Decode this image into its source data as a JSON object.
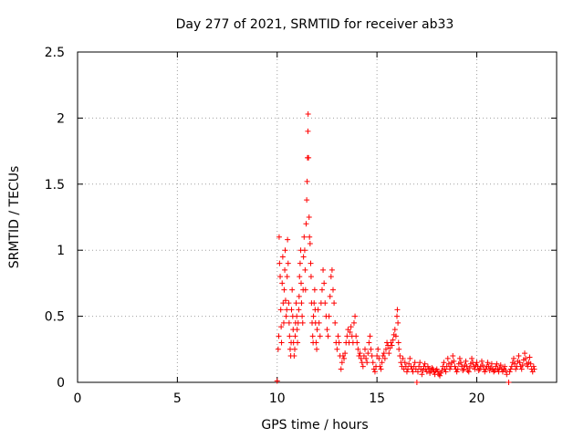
{
  "chart_data": {
    "type": "scatter",
    "title": "Day 277 of 2021, SRMTID for receiver ab33",
    "xlabel": "GPS time / hours",
    "ylabel": "SRMTID / TECUs",
    "xlim": [
      0,
      24
    ],
    "ylim": [
      0,
      2.5
    ],
    "xticks": [
      0,
      5,
      10,
      15,
      20
    ],
    "xtick_labels": [
      "0",
      "5",
      "10",
      "15",
      "20"
    ],
    "yticks": [
      0,
      0.5,
      1,
      1.5,
      2,
      2.5
    ],
    "ytick_labels": [
      "0",
      "0.5",
      "1",
      "1.5",
      "2",
      "2.5"
    ],
    "grid": true,
    "marker": "+",
    "color": "#ff0000",
    "series": [
      {
        "name": "SRMTID",
        "points": [
          [
            10.0,
            0.01
          ],
          [
            10.05,
            0.25
          ],
          [
            10.08,
            0.35
          ],
          [
            10.1,
            1.1
          ],
          [
            10.12,
            0.9
          ],
          [
            10.15,
            0.8
          ],
          [
            10.18,
            0.55
          ],
          [
            10.2,
            0.42
          ],
          [
            10.22,
            0.3
          ],
          [
            10.25,
            0.75
          ],
          [
            10.28,
            0.95
          ],
          [
            10.3,
            0.6
          ],
          [
            10.33,
            0.45
          ],
          [
            10.35,
            0.7
          ],
          [
            10.38,
            0.85
          ],
          [
            10.4,
            1.0
          ],
          [
            10.42,
            0.62
          ],
          [
            10.45,
            0.5
          ],
          [
            10.48,
            0.55
          ],
          [
            10.5,
            0.8
          ],
          [
            10.52,
            1.08
          ],
          [
            10.55,
            0.9
          ],
          [
            10.58,
            0.6
          ],
          [
            10.6,
            0.45
          ],
          [
            10.62,
            0.35
          ],
          [
            10.65,
            0.25
          ],
          [
            10.68,
            0.2
          ],
          [
            10.7,
            0.3
          ],
          [
            10.72,
            0.55
          ],
          [
            10.75,
            0.7
          ],
          [
            10.78,
            0.5
          ],
          [
            10.8,
            0.4
          ],
          [
            10.82,
            0.3
          ],
          [
            10.85,
            0.2
          ],
          [
            10.88,
            0.25
          ],
          [
            10.9,
            0.35
          ],
          [
            10.92,
            0.45
          ],
          [
            10.95,
            0.6
          ],
          [
            10.98,
            0.5
          ],
          [
            11.0,
            0.4
          ],
          [
            11.02,
            0.3
          ],
          [
            11.05,
            0.45
          ],
          [
            11.08,
            0.55
          ],
          [
            11.1,
            0.65
          ],
          [
            11.12,
            0.8
          ],
          [
            11.15,
            0.9
          ],
          [
            11.18,
            1.0
          ],
          [
            11.2,
            0.75
          ],
          [
            11.22,
            0.6
          ],
          [
            11.25,
            0.5
          ],
          [
            11.28,
            0.45
          ],
          [
            11.3,
            0.7
          ],
          [
            11.32,
            0.95
          ],
          [
            11.35,
            1.1
          ],
          [
            11.38,
            1.0
          ],
          [
            11.4,
            0.85
          ],
          [
            11.42,
            0.7
          ],
          [
            11.45,
            1.2
          ],
          [
            11.48,
            1.38
          ],
          [
            11.5,
            1.52
          ],
          [
            11.52,
            1.7
          ],
          [
            11.54,
            1.9
          ],
          [
            11.55,
            2.03
          ],
          [
            11.57,
            1.7
          ],
          [
            11.6,
            1.25
          ],
          [
            11.62,
            1.1
          ],
          [
            11.65,
            1.05
          ],
          [
            11.68,
            0.9
          ],
          [
            11.7,
            0.8
          ],
          [
            11.72,
            0.6
          ],
          [
            11.75,
            0.45
          ],
          [
            11.78,
            0.35
          ],
          [
            11.8,
            0.3
          ],
          [
            11.82,
            0.5
          ],
          [
            11.85,
            0.6
          ],
          [
            11.88,
            0.7
          ],
          [
            11.9,
            0.55
          ],
          [
            11.92,
            0.45
          ],
          [
            11.95,
            0.3
          ],
          [
            11.98,
            0.25
          ],
          [
            12.0,
            0.4
          ],
          [
            12.05,
            0.55
          ],
          [
            12.1,
            0.45
          ],
          [
            12.15,
            0.35
          ],
          [
            12.2,
            0.6
          ],
          [
            12.25,
            0.7
          ],
          [
            12.3,
            0.85
          ],
          [
            12.35,
            0.75
          ],
          [
            12.4,
            0.6
          ],
          [
            12.45,
            0.5
          ],
          [
            12.5,
            0.4
          ],
          [
            12.55,
            0.35
          ],
          [
            12.6,
            0.5
          ],
          [
            12.65,
            0.65
          ],
          [
            12.7,
            0.8
          ],
          [
            12.75,
            0.85
          ],
          [
            12.8,
            0.7
          ],
          [
            12.85,
            0.6
          ],
          [
            12.9,
            0.45
          ],
          [
            12.95,
            0.3
          ],
          [
            13.0,
            0.25
          ],
          [
            13.05,
            0.35
          ],
          [
            13.1,
            0.3
          ],
          [
            13.15,
            0.2
          ],
          [
            13.2,
            0.1
          ],
          [
            13.25,
            0.15
          ],
          [
            13.3,
            0.2
          ],
          [
            13.35,
            0.18
          ],
          [
            13.4,
            0.22
          ],
          [
            13.45,
            0.3
          ],
          [
            13.5,
            0.35
          ],
          [
            13.55,
            0.4
          ],
          [
            13.6,
            0.3
          ],
          [
            13.65,
            0.38
          ],
          [
            13.7,
            0.42
          ],
          [
            13.75,
            0.35
          ],
          [
            13.8,
            0.3
          ],
          [
            13.85,
            0.45
          ],
          [
            13.9,
            0.5
          ],
          [
            13.95,
            0.35
          ],
          [
            14.0,
            0.3
          ],
          [
            14.05,
            0.25
          ],
          [
            14.1,
            0.2
          ],
          [
            14.15,
            0.22
          ],
          [
            14.2,
            0.18
          ],
          [
            14.25,
            0.15
          ],
          [
            14.3,
            0.12
          ],
          [
            14.35,
            0.2
          ],
          [
            14.4,
            0.25
          ],
          [
            14.45,
            0.18
          ],
          [
            14.5,
            0.15
          ],
          [
            14.55,
            0.22
          ],
          [
            14.6,
            0.3
          ],
          [
            14.65,
            0.35
          ],
          [
            14.7,
            0.25
          ],
          [
            14.75,
            0.2
          ],
          [
            14.8,
            0.15
          ],
          [
            14.85,
            0.1
          ],
          [
            14.9,
            0.08
          ],
          [
            14.95,
            0.12
          ],
          [
            15.0,
            0.2
          ],
          [
            15.05,
            0.25
          ],
          [
            15.1,
            0.18
          ],
          [
            15.15,
            0.12
          ],
          [
            15.2,
            0.1
          ],
          [
            15.25,
            0.15
          ],
          [
            15.3,
            0.2
          ],
          [
            15.35,
            0.22
          ],
          [
            15.4,
            0.18
          ],
          [
            15.45,
            0.25
          ],
          [
            15.5,
            0.3
          ],
          [
            15.55,
            0.28
          ],
          [
            15.6,
            0.22
          ],
          [
            15.65,
            0.26
          ],
          [
            15.7,
            0.3
          ],
          [
            15.75,
            0.28
          ],
          [
            15.8,
            0.32
          ],
          [
            15.85,
            0.36
          ],
          [
            15.9,
            0.4
          ],
          [
            15.95,
            0.35
          ],
          [
            16.0,
            0.5
          ],
          [
            16.02,
            0.55
          ],
          [
            16.05,
            0.45
          ],
          [
            16.08,
            0.3
          ],
          [
            16.1,
            0.25
          ],
          [
            16.15,
            0.2
          ],
          [
            16.2,
            0.15
          ],
          [
            16.25,
            0.12
          ],
          [
            16.3,
            0.18
          ],
          [
            16.35,
            0.1
          ],
          [
            16.4,
            0.15
          ],
          [
            16.45,
            0.12
          ],
          [
            16.5,
            0.08
          ],
          [
            16.55,
            0.1
          ],
          [
            16.6,
            0.14
          ],
          [
            16.65,
            0.18
          ],
          [
            16.7,
            0.12
          ],
          [
            16.75,
            0.1
          ],
          [
            16.8,
            0.08
          ],
          [
            16.85,
            0.12
          ],
          [
            16.9,
            0.15
          ],
          [
            16.95,
            0.1
          ],
          [
            17.0,
            0.0
          ],
          [
            17.05,
            0.08
          ],
          [
            17.1,
            0.12
          ],
          [
            17.15,
            0.15
          ],
          [
            17.2,
            0.1
          ],
          [
            17.25,
            0.06
          ],
          [
            17.3,
            0.09
          ],
          [
            17.35,
            0.12
          ],
          [
            17.4,
            0.14
          ],
          [
            17.45,
            0.1
          ],
          [
            17.5,
            0.08
          ],
          [
            17.55,
            0.12
          ],
          [
            17.6,
            0.1
          ],
          [
            17.65,
            0.07
          ],
          [
            17.7,
            0.09
          ],
          [
            17.75,
            0.11
          ],
          [
            17.8,
            0.1
          ],
          [
            17.85,
            0.08
          ],
          [
            17.9,
            0.06
          ],
          [
            17.95,
            0.09
          ],
          [
            18.0,
            0.1
          ],
          [
            18.05,
            0.08
          ],
          [
            18.1,
            0.06
          ],
          [
            18.15,
            0.05
          ],
          [
            18.2,
            0.07
          ],
          [
            18.25,
            0.09
          ],
          [
            18.3,
            0.12
          ],
          [
            18.35,
            0.15
          ],
          [
            18.4,
            0.1
          ],
          [
            18.45,
            0.08
          ],
          [
            18.5,
            0.12
          ],
          [
            18.55,
            0.18
          ],
          [
            18.6,
            0.14
          ],
          [
            18.65,
            0.1
          ],
          [
            18.7,
            0.12
          ],
          [
            18.75,
            0.15
          ],
          [
            18.8,
            0.2
          ],
          [
            18.85,
            0.16
          ],
          [
            18.9,
            0.12
          ],
          [
            18.95,
            0.1
          ],
          [
            19.0,
            0.08
          ],
          [
            19.05,
            0.1
          ],
          [
            19.1,
            0.14
          ],
          [
            19.15,
            0.18
          ],
          [
            19.2,
            0.15
          ],
          [
            19.25,
            0.12
          ],
          [
            19.3,
            0.09
          ],
          [
            19.35,
            0.1
          ],
          [
            19.4,
            0.13
          ],
          [
            19.45,
            0.16
          ],
          [
            19.5,
            0.12
          ],
          [
            19.55,
            0.09
          ],
          [
            19.6,
            0.08
          ],
          [
            19.65,
            0.11
          ],
          [
            19.7,
            0.14
          ],
          [
            19.75,
            0.18
          ],
          [
            19.8,
            0.15
          ],
          [
            19.85,
            0.12
          ],
          [
            19.9,
            0.1
          ],
          [
            19.95,
            0.13
          ],
          [
            20.0,
            0.15
          ],
          [
            20.05,
            0.12
          ],
          [
            20.1,
            0.09
          ],
          [
            20.15,
            0.1
          ],
          [
            20.2,
            0.12
          ],
          [
            20.25,
            0.16
          ],
          [
            20.3,
            0.13
          ],
          [
            20.35,
            0.1
          ],
          [
            20.4,
            0.08
          ],
          [
            20.45,
            0.1
          ],
          [
            20.5,
            0.12
          ],
          [
            20.55,
            0.15
          ],
          [
            20.6,
            0.12
          ],
          [
            20.65,
            0.09
          ],
          [
            20.7,
            0.11
          ],
          [
            20.75,
            0.14
          ],
          [
            20.8,
            0.1
          ],
          [
            20.85,
            0.08
          ],
          [
            20.9,
            0.09
          ],
          [
            20.95,
            0.12
          ],
          [
            21.0,
            0.14
          ],
          [
            21.05,
            0.1
          ],
          [
            21.1,
            0.08
          ],
          [
            21.15,
            0.11
          ],
          [
            21.2,
            0.13
          ],
          [
            21.25,
            0.1
          ],
          [
            21.3,
            0.08
          ],
          [
            21.35,
            0.1
          ],
          [
            21.4,
            0.12
          ],
          [
            21.45,
            0.09
          ],
          [
            21.5,
            0.06
          ],
          [
            21.6,
            0.0
          ],
          [
            21.65,
            0.08
          ],
          [
            21.7,
            0.1
          ],
          [
            21.75,
            0.12
          ],
          [
            21.8,
            0.15
          ],
          [
            21.85,
            0.18
          ],
          [
            21.9,
            0.14
          ],
          [
            21.95,
            0.1
          ],
          [
            22.0,
            0.12
          ],
          [
            22.05,
            0.16
          ],
          [
            22.1,
            0.2
          ],
          [
            22.15,
            0.15
          ],
          [
            22.2,
            0.12
          ],
          [
            22.25,
            0.1
          ],
          [
            22.3,
            0.13
          ],
          [
            22.35,
            0.17
          ],
          [
            22.4,
            0.22
          ],
          [
            22.45,
            0.18
          ],
          [
            22.5,
            0.14
          ],
          [
            22.55,
            0.12
          ],
          [
            22.6,
            0.15
          ],
          [
            22.65,
            0.19
          ],
          [
            22.7,
            0.14
          ],
          [
            22.75,
            0.1
          ],
          [
            22.8,
            0.08
          ],
          [
            22.85,
            0.12
          ],
          [
            22.88,
            0.1
          ]
        ]
      }
    ]
  }
}
